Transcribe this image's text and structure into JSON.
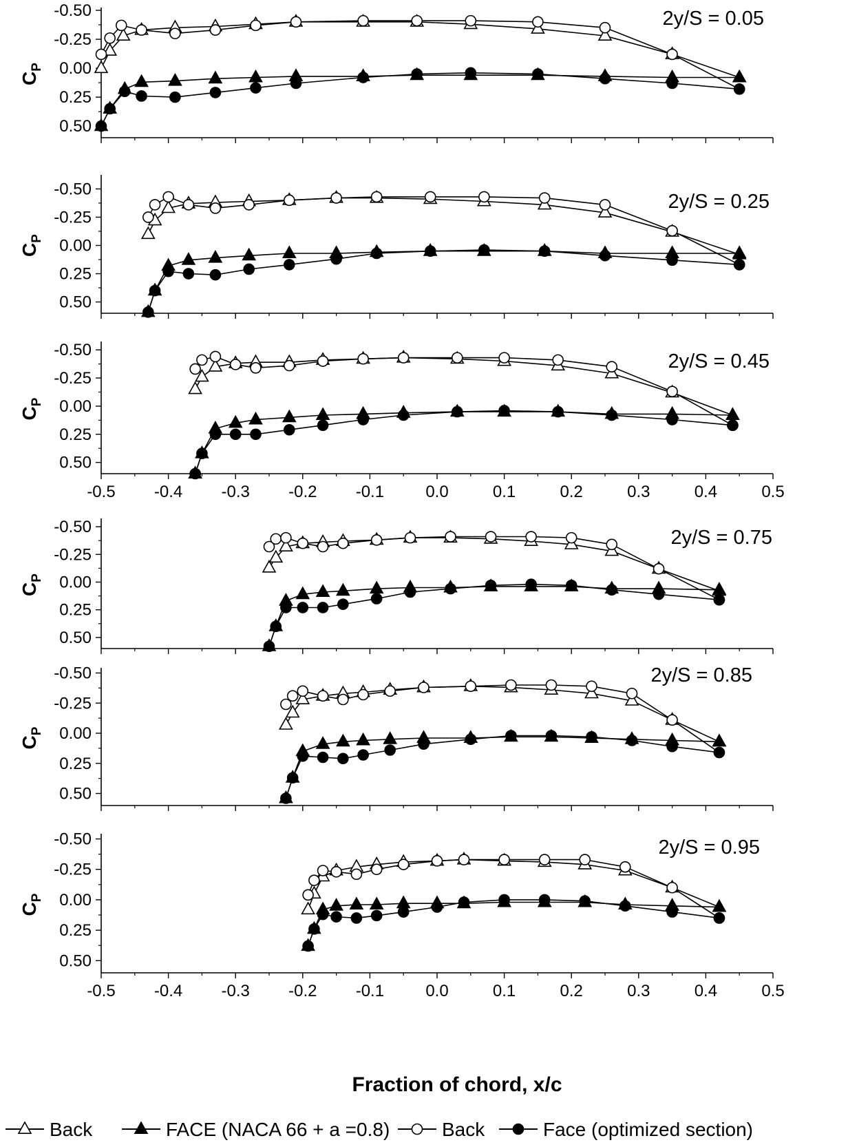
{
  "figure": {
    "xlabel": "Fraction of chord, x/c",
    "legend": [
      {
        "label": "Back",
        "marker": "open-triangle"
      },
      {
        "label": "FACE (NACA 66 + a =0.8)",
        "marker": "filled-triangle"
      },
      {
        "label": "Back",
        "marker": "open-circle"
      },
      {
        "label": "Face (optimized section)",
        "marker": "filled-circle"
      }
    ],
    "colors": {
      "line": "#000000",
      "background": "#ffffff"
    }
  },
  "chart_data": [
    {
      "type": "line",
      "label": "2y/S = 0.05",
      "ylabel": "C",
      "ylabel_sub": "P",
      "y_inverted": true,
      "xlim": [
        -0.5,
        0.5
      ],
      "ylim": [
        -0.5,
        0.6
      ],
      "yticks": [
        "-0.50",
        "-0.25",
        "0.00",
        "0.25",
        "0.50"
      ],
      "xticks": [],
      "series": [
        {
          "marker": "open-triangle",
          "x": [
            -0.5,
            -0.487,
            -0.467,
            -0.44,
            -0.39,
            -0.33,
            -0.27,
            -0.21,
            -0.11,
            -0.03,
            0.05,
            0.15,
            0.25,
            0.35,
            0.45
          ],
          "y": [
            0.0,
            -0.15,
            -0.28,
            -0.33,
            -0.35,
            -0.36,
            -0.38,
            -0.4,
            -0.4,
            -0.4,
            -0.38,
            -0.34,
            -0.28,
            -0.12,
            0.08
          ]
        },
        {
          "marker": "filled-triangle",
          "x": [
            -0.5,
            -0.487,
            -0.465,
            -0.44,
            -0.39,
            -0.33,
            -0.27,
            -0.21,
            -0.11,
            -0.03,
            0.05,
            0.15,
            0.25,
            0.35,
            0.45
          ],
          "y": [
            0.5,
            0.35,
            0.18,
            0.12,
            0.11,
            0.09,
            0.08,
            0.07,
            0.07,
            0.06,
            0.06,
            0.06,
            0.07,
            0.08,
            0.08
          ]
        },
        {
          "marker": "open-circle",
          "x": [
            -0.5,
            -0.487,
            -0.47,
            -0.44,
            -0.39,
            -0.33,
            -0.27,
            -0.21,
            -0.11,
            -0.03,
            0.05,
            0.15,
            0.25,
            0.35,
            0.45
          ],
          "y": [
            -0.12,
            -0.26,
            -0.37,
            -0.33,
            -0.3,
            -0.33,
            -0.37,
            -0.4,
            -0.41,
            -0.41,
            -0.41,
            -0.4,
            -0.35,
            -0.12,
            0.18
          ]
        },
        {
          "marker": "filled-circle",
          "x": [
            -0.5,
            -0.487,
            -0.465,
            -0.44,
            -0.39,
            -0.33,
            -0.27,
            -0.21,
            -0.11,
            -0.03,
            0.05,
            0.15,
            0.25,
            0.35,
            0.45
          ],
          "y": [
            0.5,
            0.35,
            0.2,
            0.24,
            0.25,
            0.21,
            0.17,
            0.13,
            0.08,
            0.05,
            0.04,
            0.05,
            0.09,
            0.13,
            0.18
          ]
        }
      ]
    },
    {
      "type": "line",
      "label": "2y/S = 0.25",
      "ylabel": "C",
      "ylabel_sub": "P",
      "y_inverted": true,
      "xlim": [
        -0.5,
        0.5
      ],
      "ylim": [
        -0.6,
        0.6
      ],
      "yticks": [
        "-0.50",
        "-0.25",
        "0.00",
        "0.25",
        "0.50"
      ],
      "xticks": [],
      "series": [
        {
          "marker": "open-triangle",
          "x": [
            -0.43,
            -0.42,
            -0.4,
            -0.37,
            -0.33,
            -0.28,
            -0.22,
            -0.15,
            -0.09,
            -0.01,
            0.07,
            0.16,
            0.25,
            0.35,
            0.45
          ],
          "y": [
            -0.1,
            -0.22,
            -0.33,
            -0.37,
            -0.38,
            -0.39,
            -0.4,
            -0.42,
            -0.42,
            -0.41,
            -0.39,
            -0.36,
            -0.29,
            -0.12,
            0.08
          ]
        },
        {
          "marker": "filled-triangle",
          "x": [
            -0.43,
            -0.42,
            -0.4,
            -0.37,
            -0.33,
            -0.28,
            -0.22,
            -0.15,
            -0.09,
            -0.01,
            0.07,
            0.16,
            0.25,
            0.35,
            0.45
          ],
          "y": [
            0.59,
            0.4,
            0.18,
            0.13,
            0.11,
            0.09,
            0.07,
            0.07,
            0.06,
            0.05,
            0.05,
            0.05,
            0.07,
            0.07,
            0.07
          ]
        },
        {
          "marker": "open-circle",
          "x": [
            -0.43,
            -0.42,
            -0.4,
            -0.37,
            -0.33,
            -0.28,
            -0.22,
            -0.15,
            -0.09,
            -0.01,
            0.07,
            0.16,
            0.25,
            0.35,
            0.45
          ],
          "y": [
            -0.25,
            -0.36,
            -0.43,
            -0.36,
            -0.33,
            -0.36,
            -0.4,
            -0.42,
            -0.43,
            -0.43,
            -0.43,
            -0.42,
            -0.36,
            -0.13,
            0.17
          ]
        },
        {
          "marker": "filled-circle",
          "x": [
            -0.43,
            -0.42,
            -0.4,
            -0.37,
            -0.33,
            -0.28,
            -0.22,
            -0.15,
            -0.09,
            -0.01,
            0.07,
            0.16,
            0.25,
            0.35,
            0.45
          ],
          "y": [
            0.59,
            0.4,
            0.23,
            0.25,
            0.26,
            0.21,
            0.17,
            0.12,
            0.07,
            0.05,
            0.04,
            0.05,
            0.09,
            0.13,
            0.17
          ]
        }
      ]
    },
    {
      "type": "line",
      "label": "2y/S = 0.45",
      "ylabel": "C",
      "ylabel_sub": "P",
      "y_inverted": true,
      "xlim": [
        -0.5,
        0.5
      ],
      "ylim": [
        -0.55,
        0.6
      ],
      "yticks": [
        "-0.50",
        "-0.25",
        "0.00",
        "0.25",
        "0.50"
      ],
      "xticks": [
        "-0.5",
        "-0.4",
        "-0.3",
        "-0.2",
        "-0.1",
        "0.0",
        "0.1",
        "0.2",
        "0.3",
        "0.4",
        "0.5"
      ],
      "series": [
        {
          "marker": "open-triangle",
          "x": [
            -0.36,
            -0.35,
            -0.33,
            -0.3,
            -0.27,
            -0.22,
            -0.17,
            -0.11,
            -0.05,
            0.03,
            0.1,
            0.18,
            0.26,
            0.35,
            0.44
          ],
          "y": [
            -0.15,
            -0.26,
            -0.35,
            -0.38,
            -0.39,
            -0.39,
            -0.41,
            -0.42,
            -0.43,
            -0.42,
            -0.4,
            -0.36,
            -0.29,
            -0.12,
            0.08
          ]
        },
        {
          "marker": "filled-triangle",
          "x": [
            -0.36,
            -0.35,
            -0.33,
            -0.3,
            -0.27,
            -0.22,
            -0.17,
            -0.11,
            -0.05,
            0.03,
            0.1,
            0.18,
            0.26,
            0.35,
            0.44
          ],
          "y": [
            0.6,
            0.42,
            0.2,
            0.15,
            0.12,
            0.1,
            0.08,
            0.07,
            0.06,
            0.05,
            0.05,
            0.05,
            0.07,
            0.07,
            0.08
          ]
        },
        {
          "marker": "open-circle",
          "x": [
            -0.36,
            -0.35,
            -0.33,
            -0.3,
            -0.27,
            -0.22,
            -0.17,
            -0.11,
            -0.05,
            0.03,
            0.1,
            0.18,
            0.26,
            0.35,
            0.44
          ],
          "y": [
            -0.33,
            -0.41,
            -0.44,
            -0.37,
            -0.34,
            -0.36,
            -0.4,
            -0.42,
            -0.43,
            -0.43,
            -0.43,
            -0.41,
            -0.35,
            -0.13,
            0.17
          ]
        },
        {
          "marker": "filled-circle",
          "x": [
            -0.36,
            -0.35,
            -0.33,
            -0.3,
            -0.27,
            -0.22,
            -0.17,
            -0.11,
            -0.05,
            0.03,
            0.1,
            0.18,
            0.26,
            0.35,
            0.44
          ],
          "y": [
            0.6,
            0.42,
            0.25,
            0.25,
            0.25,
            0.21,
            0.17,
            0.12,
            0.08,
            0.05,
            0.04,
            0.05,
            0.08,
            0.12,
            0.17
          ]
        }
      ]
    },
    {
      "type": "line",
      "label": "2y/S = 0.75",
      "ylabel": "C",
      "ylabel_sub": "P",
      "y_inverted": true,
      "xlim": [
        -0.5,
        0.5
      ],
      "ylim": [
        -0.55,
        0.6
      ],
      "yticks": [
        "-0.50",
        "-0.25",
        "0.00",
        "0.25",
        "0.50"
      ],
      "xticks": [],
      "series": [
        {
          "marker": "open-triangle",
          "x": [
            -0.25,
            -0.24,
            -0.225,
            -0.2,
            -0.17,
            -0.14,
            -0.09,
            -0.04,
            0.02,
            0.08,
            0.14,
            0.2,
            0.26,
            0.33,
            0.42
          ],
          "y": [
            -0.13,
            -0.22,
            -0.32,
            -0.35,
            -0.36,
            -0.37,
            -0.38,
            -0.4,
            -0.4,
            -0.39,
            -0.37,
            -0.34,
            -0.28,
            -0.12,
            0.08
          ]
        },
        {
          "marker": "filled-triangle",
          "x": [
            -0.25,
            -0.24,
            -0.225,
            -0.2,
            -0.17,
            -0.14,
            -0.09,
            -0.04,
            0.02,
            0.08,
            0.14,
            0.2,
            0.26,
            0.33,
            0.42
          ],
          "y": [
            0.58,
            0.4,
            0.17,
            0.11,
            0.09,
            0.08,
            0.06,
            0.05,
            0.05,
            0.04,
            0.04,
            0.04,
            0.06,
            0.06,
            0.07
          ]
        },
        {
          "marker": "open-circle",
          "x": [
            -0.25,
            -0.24,
            -0.225,
            -0.2,
            -0.17,
            -0.14,
            -0.09,
            -0.04,
            0.02,
            0.08,
            0.14,
            0.2,
            0.26,
            0.33,
            0.42
          ],
          "y": [
            -0.32,
            -0.39,
            -0.4,
            -0.35,
            -0.32,
            -0.35,
            -0.38,
            -0.4,
            -0.41,
            -0.41,
            -0.41,
            -0.4,
            -0.34,
            -0.12,
            0.16
          ]
        },
        {
          "marker": "filled-circle",
          "x": [
            -0.25,
            -0.24,
            -0.225,
            -0.2,
            -0.17,
            -0.14,
            -0.09,
            -0.04,
            0.02,
            0.08,
            0.14,
            0.2,
            0.26,
            0.33,
            0.42
          ],
          "y": [
            0.58,
            0.4,
            0.23,
            0.23,
            0.23,
            0.2,
            0.15,
            0.09,
            0.06,
            0.03,
            0.02,
            0.03,
            0.07,
            0.11,
            0.16
          ]
        }
      ]
    },
    {
      "type": "line",
      "label": "2y/S = 0.85",
      "ylabel": "C",
      "ylabel_sub": "P",
      "y_inverted": true,
      "xlim": [
        -0.5,
        0.5
      ],
      "ylim": [
        -0.52,
        0.6
      ],
      "yticks": [
        "-0.50",
        "-0.25",
        "0.00",
        "0.25",
        "0.50"
      ],
      "xticks": [],
      "series": [
        {
          "marker": "open-triangle",
          "x": [
            -0.225,
            -0.215,
            -0.2,
            -0.17,
            -0.14,
            -0.11,
            -0.07,
            -0.02,
            0.05,
            0.11,
            0.17,
            0.23,
            0.29,
            0.35,
            0.42
          ],
          "y": [
            -0.07,
            -0.17,
            -0.28,
            -0.31,
            -0.33,
            -0.34,
            -0.36,
            -0.38,
            -0.39,
            -0.38,
            -0.36,
            -0.33,
            -0.27,
            -0.11,
            0.07
          ]
        },
        {
          "marker": "filled-triangle",
          "x": [
            -0.225,
            -0.215,
            -0.2,
            -0.17,
            -0.14,
            -0.11,
            -0.07,
            -0.02,
            0.05,
            0.11,
            0.17,
            0.23,
            0.29,
            0.35,
            0.42
          ],
          "y": [
            0.54,
            0.37,
            0.15,
            0.09,
            0.07,
            0.06,
            0.05,
            0.04,
            0.04,
            0.03,
            0.03,
            0.04,
            0.05,
            0.06,
            0.07
          ]
        },
        {
          "marker": "open-circle",
          "x": [
            -0.225,
            -0.215,
            -0.2,
            -0.17,
            -0.14,
            -0.11,
            -0.07,
            -0.02,
            0.05,
            0.11,
            0.17,
            0.23,
            0.29,
            0.35,
            0.42
          ],
          "y": [
            -0.24,
            -0.31,
            -0.35,
            -0.31,
            -0.28,
            -0.32,
            -0.35,
            -0.38,
            -0.39,
            -0.4,
            -0.4,
            -0.39,
            -0.33,
            -0.11,
            0.16
          ]
        },
        {
          "marker": "filled-circle",
          "x": [
            -0.225,
            -0.215,
            -0.2,
            -0.17,
            -0.14,
            -0.11,
            -0.07,
            -0.02,
            0.05,
            0.11,
            0.17,
            0.23,
            0.29,
            0.35,
            0.42
          ],
          "y": [
            0.54,
            0.37,
            0.19,
            0.2,
            0.21,
            0.18,
            0.14,
            0.09,
            0.05,
            0.02,
            0.02,
            0.03,
            0.06,
            0.11,
            0.16
          ]
        }
      ]
    },
    {
      "type": "line",
      "label": "2y/S = 0.95",
      "ylabel": "C",
      "ylabel_sub": "P",
      "y_inverted": true,
      "xlim": [
        -0.5,
        0.5
      ],
      "ylim": [
        -0.52,
        0.6
      ],
      "yticks": [
        "-0.50",
        "-0.25",
        "0.00",
        "0.25",
        "0.50"
      ],
      "xticks": [
        "-0.5",
        "-0.4",
        "-0.3",
        "-0.2",
        "-0.1",
        "0.0",
        "0.1",
        "0.2",
        "0.3",
        "0.4",
        "0.5"
      ],
      "series": [
        {
          "marker": "open-triangle",
          "x": [
            -0.192,
            -0.183,
            -0.17,
            -0.15,
            -0.12,
            -0.09,
            -0.05,
            0.0,
            0.04,
            0.1,
            0.16,
            0.22,
            0.28,
            0.35,
            0.42
          ],
          "y": [
            0.08,
            -0.05,
            -0.19,
            -0.24,
            -0.27,
            -0.29,
            -0.31,
            -0.32,
            -0.33,
            -0.32,
            -0.31,
            -0.29,
            -0.24,
            -0.1,
            0.06
          ]
        },
        {
          "marker": "filled-triangle",
          "x": [
            -0.192,
            -0.183,
            -0.17,
            -0.15,
            -0.12,
            -0.09,
            -0.05,
            0.0,
            0.04,
            0.1,
            0.16,
            0.22,
            0.28,
            0.35,
            0.42
          ],
          "y": [
            0.38,
            0.24,
            0.08,
            0.05,
            0.04,
            0.04,
            0.03,
            0.03,
            0.03,
            0.02,
            0.02,
            0.02,
            0.04,
            0.05,
            0.06
          ]
        },
        {
          "marker": "open-circle",
          "x": [
            -0.192,
            -0.183,
            -0.17,
            -0.15,
            -0.12,
            -0.09,
            -0.05,
            0.0,
            0.04,
            0.1,
            0.16,
            0.22,
            0.28,
            0.35,
            0.42
          ],
          "y": [
            -0.04,
            -0.16,
            -0.24,
            -0.23,
            -0.21,
            -0.25,
            -0.29,
            -0.32,
            -0.33,
            -0.33,
            -0.33,
            -0.33,
            -0.27,
            -0.1,
            0.15
          ]
        },
        {
          "marker": "filled-circle",
          "x": [
            -0.192,
            -0.183,
            -0.17,
            -0.15,
            -0.12,
            -0.09,
            -0.05,
            0.0,
            0.04,
            0.1,
            0.16,
            0.22,
            0.28,
            0.35,
            0.42
          ],
          "y": [
            0.38,
            0.24,
            0.12,
            0.14,
            0.15,
            0.13,
            0.1,
            0.06,
            0.02,
            0.0,
            0.0,
            0.01,
            0.05,
            0.1,
            0.15
          ]
        }
      ]
    }
  ]
}
